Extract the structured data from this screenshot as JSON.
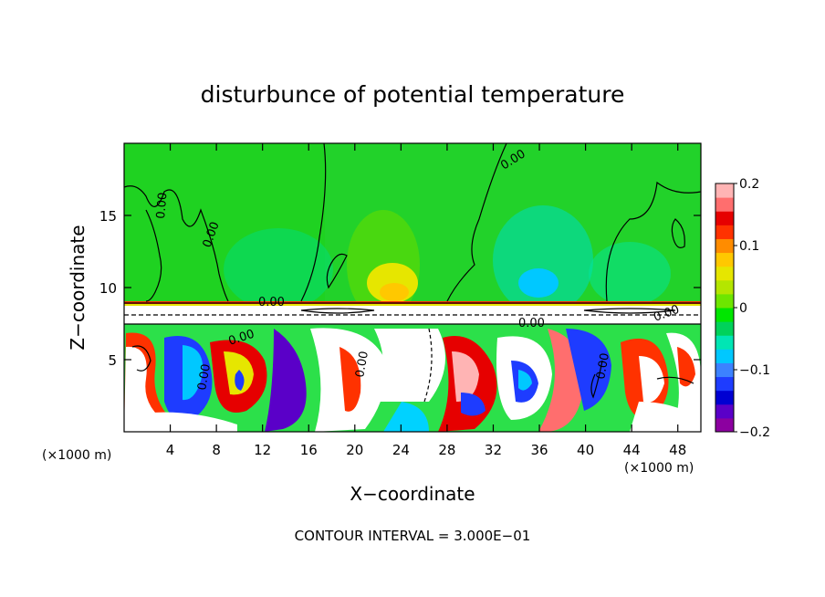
{
  "chart_data": {
    "type": "heatmap",
    "title": "disturbunce of potential temperature",
    "xlabel": "X−coordinate",
    "ylabel": "Z−coordinate",
    "x_unit_left": "(×1000 m)",
    "x_unit_right": "(×1000 m)",
    "xlim": [
      0,
      50
    ],
    "ylim": [
      0,
      20
    ],
    "x_ticks": [
      {
        "value": 4,
        "label": "4"
      },
      {
        "value": 8,
        "label": "8"
      },
      {
        "value": 12,
        "label": "12"
      },
      {
        "value": 16,
        "label": "16"
      },
      {
        "value": 20,
        "label": "20"
      },
      {
        "value": 24,
        "label": "24"
      },
      {
        "value": 28,
        "label": "28"
      },
      {
        "value": 32,
        "label": "32"
      },
      {
        "value": 36,
        "label": "36"
      },
      {
        "value": 40,
        "label": "40"
      },
      {
        "value": 44,
        "label": "44"
      },
      {
        "value": 48,
        "label": "48"
      }
    ],
    "y_ticks": [
      {
        "value": 5,
        "label": "5"
      },
      {
        "value": 10,
        "label": "10"
      },
      {
        "value": 15,
        "label": "15"
      }
    ],
    "colorbar": {
      "min": -0.2,
      "max": 0.2,
      "ticks": [
        {
          "value": 0.2,
          "label": "0.2"
        },
        {
          "value": 0.1,
          "label": "0.1"
        },
        {
          "value": 0,
          "label": "0"
        },
        {
          "value": -0.1,
          "label": "−0.1"
        },
        {
          "value": -0.2,
          "label": "−0.2"
        }
      ],
      "colors": [
        "#8c00a0",
        "#5a00c8",
        "#0000d2",
        "#1e3cff",
        "#3c82ff",
        "#00c8ff",
        "#00e6b4",
        "#00d25a",
        "#00e600",
        "#6ee600",
        "#b4e600",
        "#e6e600",
        "#ffc800",
        "#ff8c00",
        "#ff3200",
        "#e60000",
        "#ff6e6e",
        "#ffb4b4"
      ]
    },
    "contour_labels": [
      "0.00",
      "0.00",
      "0.00",
      "0.00",
      "0.00",
      "0.00",
      "0.00",
      "0.00",
      "0.00",
      "0.00"
    ],
    "footer": "CONTOUR INTERVAL = 3.000E−01"
  }
}
